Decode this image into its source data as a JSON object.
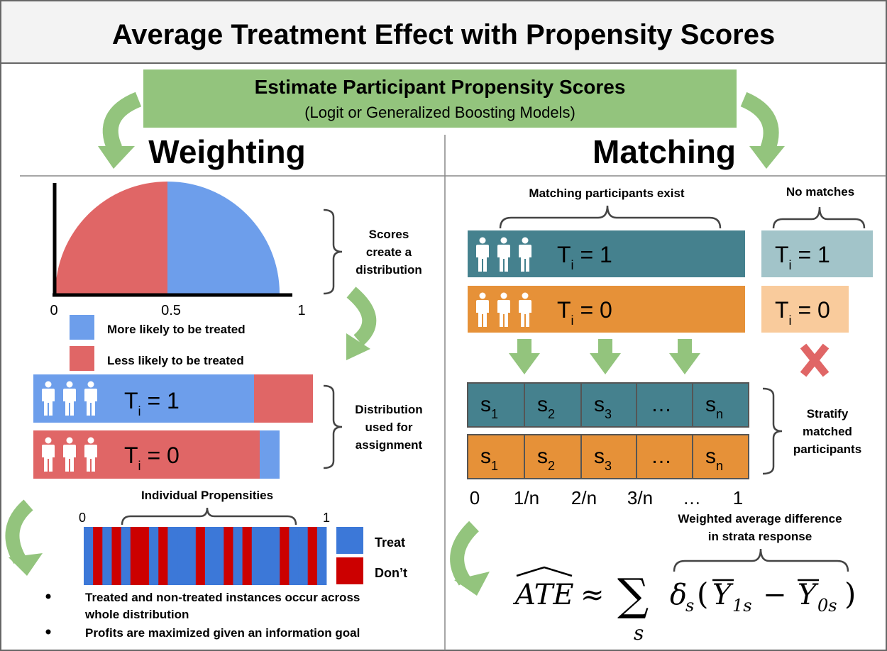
{
  "title": "Average Treatment Effect with Propensity Scores",
  "estimate": {
    "heading": "Estimate Participant Propensity Scores",
    "subheading": "(Logit or Generalized Boosting Models)"
  },
  "weighting": {
    "heading": "Weighting",
    "dist_chart": {
      "axis_ticks": [
        "0",
        "0.5",
        "1"
      ],
      "legend": [
        {
          "label": "More likely to be treated",
          "color": "#6d9eeb"
        },
        {
          "label": "Less likely to be treated",
          "color": "#e06666"
        }
      ]
    },
    "brace1_lines": [
      "Scores",
      "create a",
      "distribution"
    ],
    "bars": [
      {
        "t_label": "T",
        "t_sub": "i",
        "t_eq": " = 1",
        "main_color": "#6d9eeb",
        "other_color": "#e06666",
        "split": 0.79
      },
      {
        "t_label": "T",
        "t_sub": "i",
        "t_eq": " = 0",
        "main_color": "#e06666",
        "other_color": "#6d9eeb",
        "split": 0.81
      }
    ],
    "brace2_lines": [
      "Distribution",
      "used for",
      "assignment"
    ],
    "individual": {
      "title": "Individual Propensities",
      "tick_start": "0",
      "tick_end": "1",
      "pattern": [
        1,
        0,
        1,
        0,
        1,
        0,
        0,
        1,
        0,
        1,
        1,
        1,
        0,
        1,
        1,
        0,
        1,
        0,
        1,
        1,
        1,
        0,
        1,
        1,
        0,
        1
      ],
      "legend": [
        {
          "label": "Treat",
          "color": "#3c78d8"
        },
        {
          "label": "Don’t",
          "color": "#cc0000"
        }
      ]
    },
    "bullets": [
      "Treated and non-treated instances occur across whole distribution",
      "Profits are maximized given an information goal"
    ]
  },
  "matching": {
    "heading": "Matching",
    "matched_label": "Matching participants exist",
    "nomatch_label": "No matches",
    "rows": [
      {
        "t_label": "T",
        "t_sub": "i",
        "t_eq": " = 1",
        "color": "#45818e",
        "light_color": "#a2c4c9"
      },
      {
        "t_label": "T",
        "t_sub": "i",
        "t_eq": " = 0",
        "color": "#e69138",
        "light_color": "#f9cb9c"
      }
    ],
    "strata": [
      {
        "base": "s",
        "sub": "1"
      },
      {
        "base": "s",
        "sub": "2"
      },
      {
        "base": "s",
        "sub": "3"
      },
      {
        "base": "…",
        "sub": ""
      },
      {
        "base": "s",
        "sub": "n"
      }
    ],
    "stratify_lines": [
      "Stratify",
      "matched",
      "participants"
    ],
    "scale_ticks": [
      "0",
      "1/n",
      "2/n",
      "3/n",
      "…",
      "1"
    ],
    "weighted_lines": [
      "Weighted average difference",
      "in strata response"
    ],
    "formula": {
      "lhs": "ATE",
      "approx": "≈",
      "sum": "∑",
      "sum_sub": "s",
      "delta": "δ",
      "delta_sub": "s",
      "open": "(",
      "y": "Y",
      "y1_sub": "1s",
      "minus": "−",
      "y0_sub": "0s",
      "close": ")"
    }
  },
  "colors": {
    "green_box": "#93c47d",
    "green_arrow": "#93c47d",
    "red_x": "#e06666",
    "border": "#666666"
  }
}
